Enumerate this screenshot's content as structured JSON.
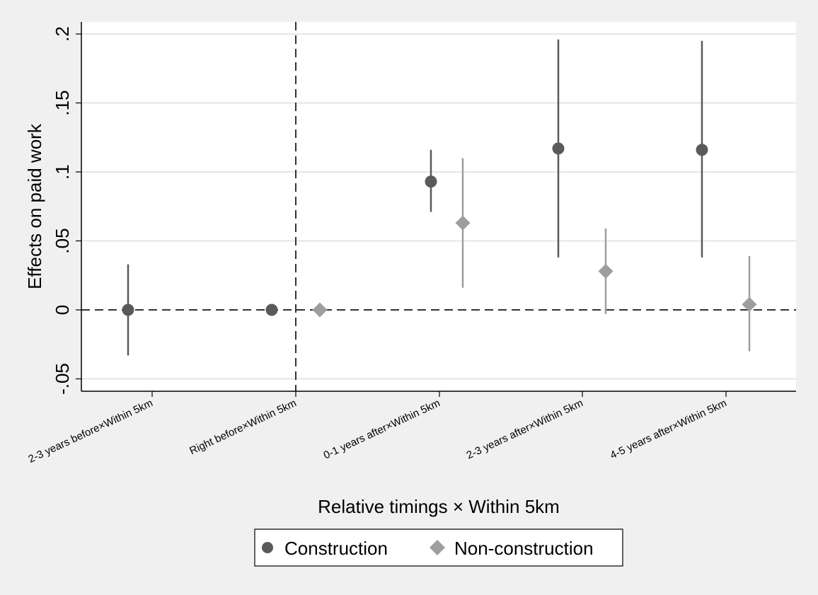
{
  "chart_data": {
    "type": "scatter",
    "xlabel": "Relative timings × Within 5km",
    "ylabel": "Effects on paid work",
    "ylim": [
      -0.06,
      0.21
    ],
    "yticks": [
      -0.05,
      0,
      0.05,
      0.1,
      0.15,
      0.2
    ],
    "ytick_labels": [
      "-.05",
      "0",
      ".05",
      ".1",
      ".15",
      ".2"
    ],
    "categories": [
      "2-3 years before×Within 5km",
      "Right before×Within 5km",
      "0-1 years after×Within 5km",
      "2-3 years after×Within 5km",
      "4-5 years after×Within 5km"
    ],
    "grid": true,
    "reference_lines": {
      "y": 0,
      "x_category_index": 1
    },
    "legend": {
      "placement": "bottom"
    },
    "series": [
      {
        "name": "Construction",
        "marker": "circle",
        "color": "#5a5a5a",
        "points": [
          {
            "cat": 0,
            "y": 0.0,
            "lo": -0.033,
            "hi": 0.033
          },
          {
            "cat": 1,
            "y": 0.0,
            "lo": null,
            "hi": null
          },
          {
            "cat": 2,
            "y": 0.093,
            "lo": 0.071,
            "hi": 0.116
          },
          {
            "cat": 3,
            "y": 0.117,
            "lo": 0.038,
            "hi": 0.196
          },
          {
            "cat": 4,
            "y": 0.116,
            "lo": 0.038,
            "hi": 0.195
          }
        ]
      },
      {
        "name": "Non-construction",
        "marker": "diamond",
        "color": "#9e9e9e",
        "points": [
          {
            "cat": 1,
            "y": 0.0,
            "lo": null,
            "hi": null
          },
          {
            "cat": 2,
            "y": 0.063,
            "lo": 0.016,
            "hi": 0.11
          },
          {
            "cat": 3,
            "y": 0.028,
            "lo": -0.003,
            "hi": 0.059
          },
          {
            "cat": 4,
            "y": 0.004,
            "lo": -0.03,
            "hi": 0.039
          }
        ]
      }
    ]
  }
}
